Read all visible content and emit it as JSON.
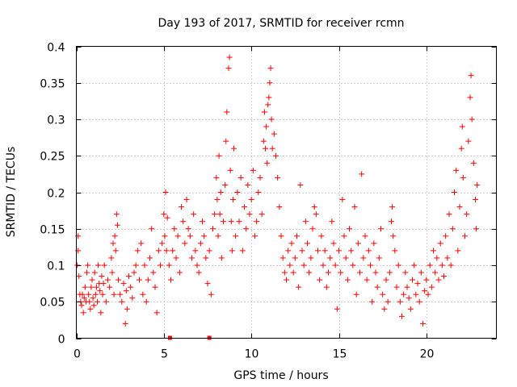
{
  "chart_data": {
    "type": "scatter",
    "title": "Day 193 of 2017, SRMTID for receiver rcmn",
    "xlabel": "GPS time / hours",
    "ylabel": "SRMTID / TECUs",
    "xlim": [
      0,
      24
    ],
    "ylim": [
      0,
      0.4
    ],
    "xticks": [
      0,
      5,
      10,
      15,
      20
    ],
    "yticks": [
      0,
      0.05,
      0.1,
      0.15,
      0.2,
      0.25,
      0.3,
      0.35,
      0.4
    ],
    "xtick_labels": [
      "0",
      "5",
      "10",
      "15",
      "20"
    ],
    "ytick_labels": [
      "0",
      "0.05",
      "0.1",
      "0.15",
      "0.2",
      "0.25",
      "0.3",
      "0.35",
      "0.4"
    ],
    "grid": true,
    "marker": "+",
    "color": "#ff0000",
    "series": [
      {
        "name": "SRMTID",
        "points": [
          [
            0.05,
            0.1
          ],
          [
            0.1,
            0.14
          ],
          [
            0.1,
            0.12
          ],
          [
            0.15,
            0.085
          ],
          [
            0.2,
            0.06
          ],
          [
            0.25,
            0.05
          ],
          [
            0.3,
            0.045
          ],
          [
            0.35,
            0.06
          ],
          [
            0.4,
            0.035
          ],
          [
            0.45,
            0.055
          ],
          [
            0.5,
            0.07
          ],
          [
            0.55,
            0.05
          ],
          [
            0.6,
            0.09
          ],
          [
            0.65,
            0.1
          ],
          [
            0.7,
            0.06
          ],
          [
            0.75,
            0.05
          ],
          [
            0.8,
            0.04
          ],
          [
            0.85,
            0.07
          ],
          [
            0.9,
            0.08
          ],
          [
            0.95,
            0.055
          ],
          [
            1.0,
            0.045
          ],
          [
            1.05,
            0.09
          ],
          [
            1.1,
            0.06
          ],
          [
            1.15,
            0.07
          ],
          [
            1.2,
            0.05
          ],
          [
            1.25,
            0.1
          ],
          [
            1.3,
            0.075
          ],
          [
            1.35,
            0.065
          ],
          [
            1.4,
            0.035
          ],
          [
            1.45,
            0.085
          ],
          [
            1.5,
            0.06
          ],
          [
            1.55,
            0.075
          ],
          [
            1.6,
            0.1
          ],
          [
            1.7,
            0.05
          ],
          [
            1.8,
            0.08
          ],
          [
            1.9,
            0.07
          ],
          [
            2.0,
            0.11
          ],
          [
            2.05,
            0.09
          ],
          [
            2.1,
            0.13
          ],
          [
            2.15,
            0.06
          ],
          [
            2.2,
            0.14
          ],
          [
            2.25,
            0.12
          ],
          [
            2.3,
            0.17
          ],
          [
            2.35,
            0.155
          ],
          [
            2.4,
            0.08
          ],
          [
            2.5,
            0.06
          ],
          [
            2.6,
            0.05
          ],
          [
            2.7,
            0.075
          ],
          [
            2.8,
            0.02
          ],
          [
            2.85,
            0.065
          ],
          [
            2.9,
            0.04
          ],
          [
            3.0,
            0.085
          ],
          [
            3.1,
            0.07
          ],
          [
            3.2,
            0.055
          ],
          [
            3.3,
            0.09
          ],
          [
            3.4,
            0.1
          ],
          [
            3.5,
            0.12
          ],
          [
            3.6,
            0.08
          ],
          [
            3.7,
            0.13
          ],
          [
            3.8,
            0.06
          ],
          [
            3.9,
            0.1
          ],
          [
            4.0,
            0.05
          ],
          [
            4.1,
            0.08
          ],
          [
            4.2,
            0.11
          ],
          [
            4.3,
            0.15
          ],
          [
            4.4,
            0.09
          ],
          [
            4.5,
            0.07
          ],
          [
            4.6,
            0.035
          ],
          [
            4.7,
            0.12
          ],
          [
            4.8,
            0.1
          ],
          [
            4.9,
            0.13
          ],
          [
            5.0,
            0.17
          ],
          [
            5.05,
            0.14
          ],
          [
            5.1,
            0.2
          ],
          [
            5.15,
            0.12
          ],
          [
            5.2,
            0.165
          ],
          [
            5.3,
            0.1
          ],
          [
            5.4,
            0.08
          ],
          [
            5.5,
            0.12
          ],
          [
            5.6,
            0.15
          ],
          [
            5.7,
            0.11
          ],
          [
            5.8,
            0.14
          ],
          [
            5.9,
            0.09
          ],
          [
            6.0,
            0.18
          ],
          [
            6.1,
            0.16
          ],
          [
            6.2,
            0.13
          ],
          [
            6.3,
            0.19
          ],
          [
            6.4,
            0.15
          ],
          [
            6.5,
            0.14
          ],
          [
            6.6,
            0.11
          ],
          [
            6.7,
            0.17
          ],
          [
            6.8,
            0.12
          ],
          [
            6.9,
            0.1
          ],
          [
            7.0,
            0.09
          ],
          [
            7.1,
            0.13
          ],
          [
            7.2,
            0.16
          ],
          [
            7.3,
            0.14
          ],
          [
            7.4,
            0.11
          ],
          [
            7.5,
            0.075
          ],
          [
            7.6,
            0.12
          ],
          [
            7.7,
            0.06
          ],
          [
            7.8,
            0.15
          ],
          [
            7.9,
            0.17
          ],
          [
            8.0,
            0.22
          ],
          [
            8.05,
            0.19
          ],
          [
            8.1,
            0.14
          ],
          [
            8.15,
            0.25
          ],
          [
            8.2,
            0.17
          ],
          [
            8.25,
            0.2
          ],
          [
            8.3,
            0.11
          ],
          [
            8.4,
            0.16
          ],
          [
            8.5,
            0.21
          ],
          [
            8.55,
            0.27
          ],
          [
            8.6,
            0.31
          ],
          [
            8.7,
            0.37
          ],
          [
            8.75,
            0.385
          ],
          [
            8.8,
            0.23
          ],
          [
            8.85,
            0.16
          ],
          [
            8.9,
            0.12
          ],
          [
            8.95,
            0.19
          ],
          [
            9.0,
            0.26
          ],
          [
            9.1,
            0.14
          ],
          [
            9.2,
            0.2
          ],
          [
            9.3,
            0.16
          ],
          [
            9.4,
            0.22
          ],
          [
            9.5,
            0.12
          ],
          [
            9.6,
            0.18
          ],
          [
            9.7,
            0.15
          ],
          [
            9.8,
            0.21
          ],
          [
            9.9,
            0.17
          ],
          [
            10.0,
            0.19
          ],
          [
            10.1,
            0.23
          ],
          [
            10.2,
            0.14
          ],
          [
            10.3,
            0.16
          ],
          [
            10.4,
            0.2
          ],
          [
            10.5,
            0.22
          ],
          [
            10.6,
            0.17
          ],
          [
            10.7,
            0.27
          ],
          [
            10.75,
            0.31
          ],
          [
            10.8,
            0.26
          ],
          [
            10.85,
            0.29
          ],
          [
            10.9,
            0.24
          ],
          [
            10.95,
            0.32
          ],
          [
            11.0,
            0.33
          ],
          [
            11.05,
            0.35
          ],
          [
            11.1,
            0.37
          ],
          [
            11.15,
            0.3
          ],
          [
            11.2,
            0.26
          ],
          [
            11.3,
            0.28
          ],
          [
            11.4,
            0.25
          ],
          [
            11.5,
            0.22
          ],
          [
            11.6,
            0.18
          ],
          [
            11.7,
            0.14
          ],
          [
            11.8,
            0.11
          ],
          [
            11.9,
            0.09
          ],
          [
            12.0,
            0.08
          ],
          [
            12.1,
            0.12
          ],
          [
            12.2,
            0.1
          ],
          [
            12.3,
            0.13
          ],
          [
            12.4,
            0.09
          ],
          [
            12.5,
            0.11
          ],
          [
            12.6,
            0.14
          ],
          [
            12.7,
            0.07
          ],
          [
            12.8,
            0.21
          ],
          [
            12.9,
            0.12
          ],
          [
            13.0,
            0.1
          ],
          [
            13.1,
            0.16
          ],
          [
            13.2,
            0.13
          ],
          [
            13.3,
            0.09
          ],
          [
            13.4,
            0.11
          ],
          [
            13.5,
            0.15
          ],
          [
            13.6,
            0.18
          ],
          [
            13.7,
            0.17
          ],
          [
            13.8,
            0.12
          ],
          [
            13.9,
            0.08
          ],
          [
            14.0,
            0.14
          ],
          [
            14.1,
            0.1
          ],
          [
            14.2,
            0.12
          ],
          [
            14.3,
            0.07
          ],
          [
            14.4,
            0.09
          ],
          [
            14.5,
            0.11
          ],
          [
            14.6,
            0.16
          ],
          [
            14.7,
            0.13
          ],
          [
            14.8,
            0.1
          ],
          [
            14.9,
            0.04
          ],
          [
            15.0,
            0.12
          ],
          [
            15.1,
            0.09
          ],
          [
            15.2,
            0.19
          ],
          [
            15.3,
            0.14
          ],
          [
            15.4,
            0.11
          ],
          [
            15.5,
            0.08
          ],
          [
            15.6,
            0.15
          ],
          [
            15.7,
            0.12
          ],
          [
            15.8,
            0.1
          ],
          [
            15.9,
            0.18
          ],
          [
            16.0,
            0.06
          ],
          [
            16.1,
            0.13
          ],
          [
            16.2,
            0.09
          ],
          [
            16.3,
            0.225
          ],
          [
            16.4,
            0.11
          ],
          [
            16.5,
            0.14
          ],
          [
            16.6,
            0.08
          ],
          [
            16.7,
            0.12
          ],
          [
            16.8,
            0.1
          ],
          [
            16.9,
            0.05
          ],
          [
            17.0,
            0.13
          ],
          [
            17.1,
            0.09
          ],
          [
            17.2,
            0.07
          ],
          [
            17.3,
            0.11
          ],
          [
            17.4,
            0.15
          ],
          [
            17.5,
            0.06
          ],
          [
            17.6,
            0.04
          ],
          [
            17.7,
            0.08
          ],
          [
            17.8,
            0.05
          ],
          [
            17.9,
            0.09
          ],
          [
            18.0,
            0.16
          ],
          [
            18.05,
            0.18
          ],
          [
            18.1,
            0.14
          ],
          [
            18.2,
            0.12
          ],
          [
            18.3,
            0.07
          ],
          [
            18.4,
            0.1
          ],
          [
            18.5,
            0.05
          ],
          [
            18.6,
            0.03
          ],
          [
            18.7,
            0.06
          ],
          [
            18.8,
            0.09
          ],
          [
            18.9,
            0.07
          ],
          [
            19.0,
            0.055
          ],
          [
            19.1,
            0.04
          ],
          [
            19.2,
            0.08
          ],
          [
            19.3,
            0.1
          ],
          [
            19.4,
            0.06
          ],
          [
            19.5,
            0.075
          ],
          [
            19.6,
            0.05
          ],
          [
            19.7,
            0.09
          ],
          [
            19.8,
            0.02
          ],
          [
            19.9,
            0.065
          ],
          [
            20.0,
            0.08
          ],
          [
            20.1,
            0.06
          ],
          [
            20.2,
            0.1
          ],
          [
            20.3,
            0.07
          ],
          [
            20.4,
            0.12
          ],
          [
            20.5,
            0.09
          ],
          [
            20.6,
            0.11
          ],
          [
            20.7,
            0.08
          ],
          [
            20.8,
            0.13
          ],
          [
            20.9,
            0.1
          ],
          [
            21.0,
            0.085
          ],
          [
            21.1,
            0.14
          ],
          [
            21.2,
            0.11
          ],
          [
            21.3,
            0.17
          ],
          [
            21.4,
            0.1
          ],
          [
            21.5,
            0.15
          ],
          [
            21.6,
            0.2
          ],
          [
            21.7,
            0.23
          ],
          [
            21.8,
            0.12
          ],
          [
            21.9,
            0.18
          ],
          [
            22.0,
            0.26
          ],
          [
            22.05,
            0.29
          ],
          [
            22.1,
            0.22
          ],
          [
            22.2,
            0.14
          ],
          [
            22.3,
            0.17
          ],
          [
            22.4,
            0.27
          ],
          [
            22.5,
            0.33
          ],
          [
            22.55,
            0.36
          ],
          [
            22.6,
            0.3
          ],
          [
            22.7,
            0.24
          ],
          [
            22.8,
            0.19
          ],
          [
            22.85,
            0.15
          ],
          [
            22.9,
            0.21
          ]
        ]
      }
    ],
    "baseline_markers": [
      5.35,
      7.6
    ]
  }
}
